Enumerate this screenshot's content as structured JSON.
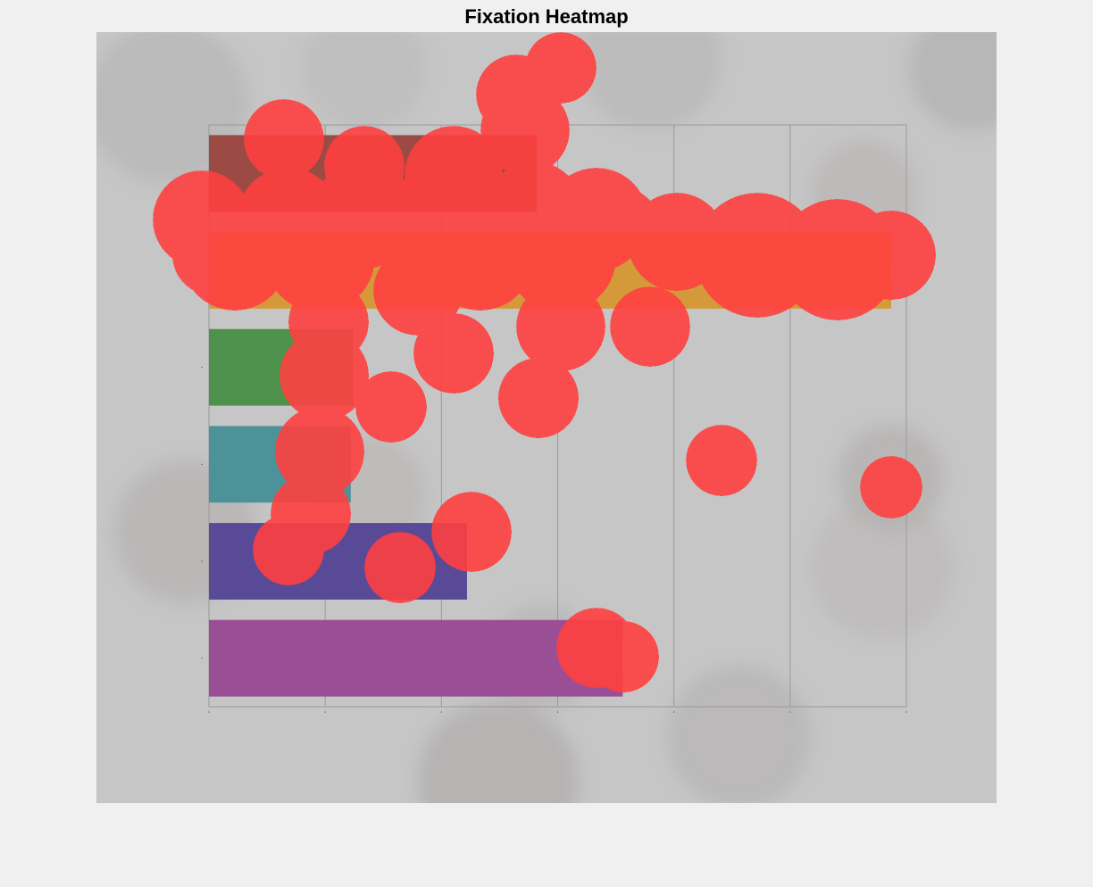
{
  "title": "Fixation Heatmap",
  "colors": {
    "background": "#f0f0f0",
    "stimulus_background": "#c6c6c6",
    "grid": "#9a9a9a",
    "heat_low": "#ff4040",
    "heat_mid": "#ffff30",
    "heat_high": "#ffffff"
  },
  "chart_data": {
    "type": "bar",
    "orientation": "horizontal",
    "title": "",
    "xlabel": "",
    "ylabel": "",
    "categories": [
      "",
      "",
      "",
      "",
      "",
      ""
    ],
    "values": [
      2.82,
      5.87,
      1.24,
      1.22,
      2.22,
      3.56
    ],
    "bar_colors": [
      "#9c4b44",
      "#d49a3a",
      "#4e914c",
      "#4d9299",
      "#584a96",
      "#9a4e96"
    ],
    "xlim": [
      0,
      6
    ],
    "x_ticks": [
      0,
      1,
      2,
      3,
      4,
      5,
      6
    ],
    "grid": true,
    "legend": "none"
  }
}
